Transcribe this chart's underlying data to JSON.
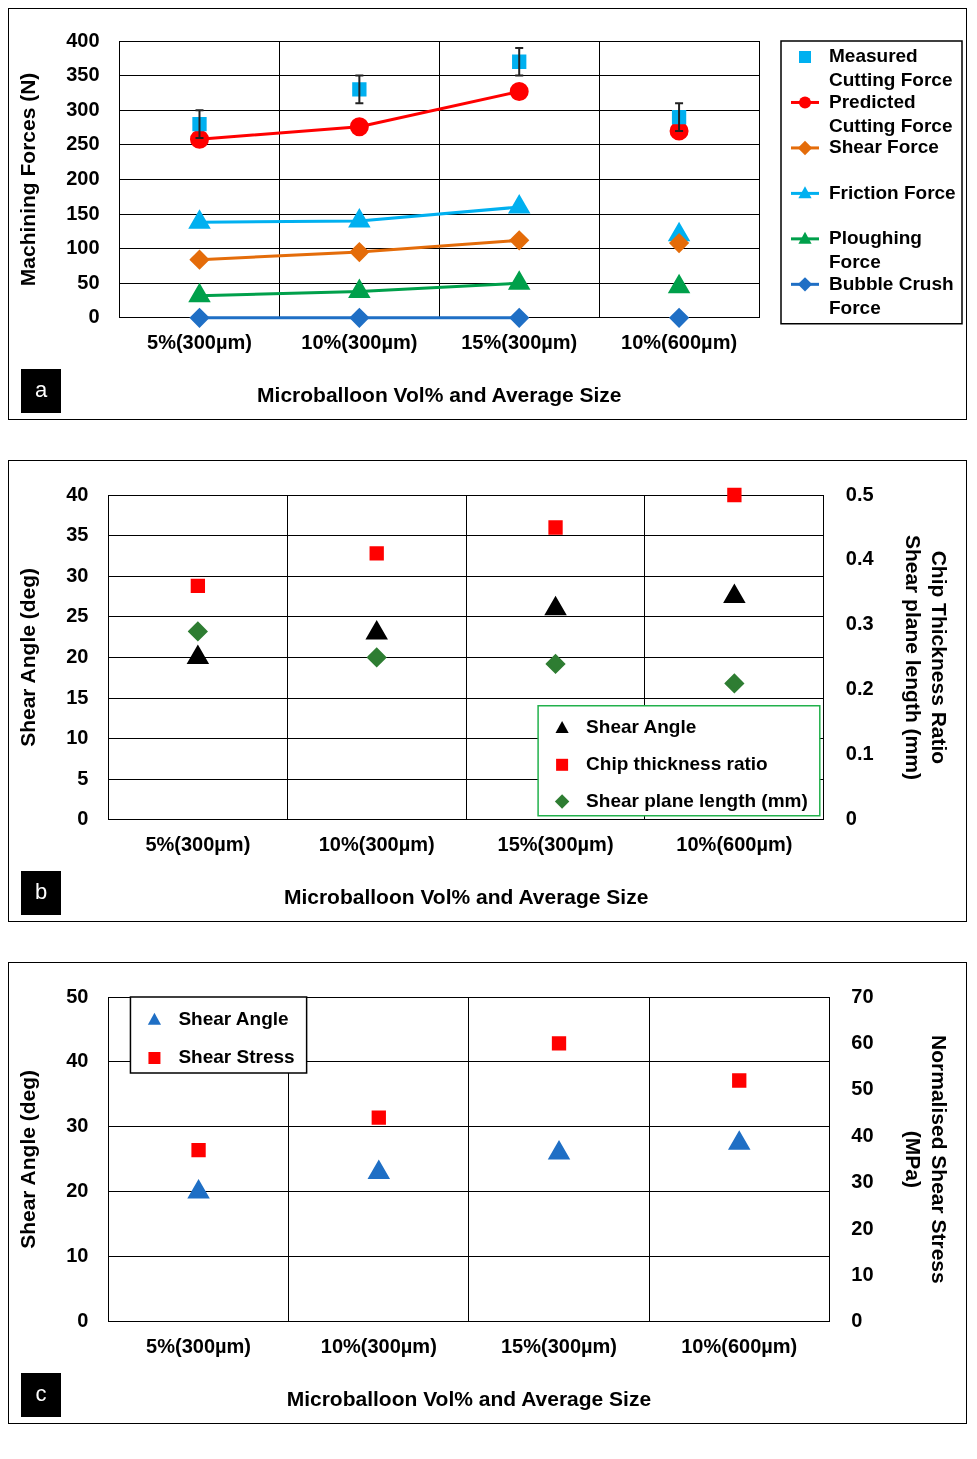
{
  "chart_data": [
    {
      "type": "line",
      "categories": [
        "5%(300µm)",
        "10%(300µm)",
        "15%(300µm)",
        "10%(600µm)"
      ],
      "xlabel": "Microballoon Vol% and Average Size",
      "ylabel": "Machining Forces (N)",
      "ylim": [
        0,
        400
      ],
      "yticks": [
        0,
        50,
        100,
        150,
        200,
        250,
        300,
        350,
        400
      ],
      "grid": true,
      "legend": "right",
      "annotations": [
        "a"
      ],
      "series": [
        {
          "name": "Measured Cutting Force",
          "type": "scatter",
          "marker": "square",
          "color": "#00b0f0",
          "values": [
            280,
            330,
            370,
            290
          ],
          "errors": [
            20,
            20,
            20,
            20
          ]
        },
        {
          "name": "Predicted Cutting Force",
          "type": "line",
          "marker": "circle",
          "color": "#ff0000",
          "values": [
            258,
            276,
            327,
            null
          ]
        },
        {
          "type": "scatter",
          "marker": "circle",
          "color": "#ff0000",
          "x": [
            "10%(600µm)"
          ],
          "values": [
            270
          ]
        },
        {
          "name": "Shear Force",
          "type": "line",
          "marker": "diamond",
          "color": "#e46c0a",
          "values": [
            84,
            95,
            112,
            null
          ]
        },
        {
          "type": "scatter",
          "marker": "diamond",
          "color": "#e46c0a",
          "x": [
            "10%(600µm)"
          ],
          "values": [
            108
          ]
        },
        {
          "name": "Friction Force",
          "type": "line",
          "marker": "triangle",
          "color": "#00b0f0",
          "values": [
            138,
            140,
            160,
            null
          ]
        },
        {
          "type": "scatter",
          "marker": "triangle",
          "color": "#00b0f0",
          "x": [
            "10%(600µm)"
          ],
          "values": [
            120
          ]
        },
        {
          "name": "Ploughing Force",
          "type": "line",
          "marker": "triangle",
          "color": "#00a04b",
          "values": [
            32,
            38,
            50,
            null
          ]
        },
        {
          "type": "scatter",
          "marker": "triangle",
          "color": "#00a04b",
          "x": [
            "10%(600µm)"
          ],
          "values": [
            45
          ]
        },
        {
          "name": "Bubble Crush Force",
          "type": "line",
          "marker": "diamond",
          "color": "#1f6fc5",
          "values": [
            0,
            0,
            0,
            null
          ]
        },
        {
          "type": "scatter",
          "marker": "diamond",
          "color": "#1f6fc5",
          "x": [
            "10%(600µm)"
          ],
          "values": [
            0
          ]
        }
      ]
    },
    {
      "type": "scatter",
      "categories": [
        "5%(300µm)",
        "10%(300µm)",
        "15%(300µm)",
        "10%(600µm)"
      ],
      "xlabel": "Microballoon Vol% and Average Size",
      "ylabel": "Shear Angle (deg)",
      "y2label": "Chip Thickness Ratio\nShear plane length (mm)",
      "ylim": [
        0,
        40
      ],
      "yticks": [
        0,
        5,
        10,
        15,
        20,
        25,
        30,
        35,
        40
      ],
      "y2lim": [
        0,
        0.5
      ],
      "y2ticks": [
        0,
        0.1,
        0.2,
        0.3,
        0.4,
        0.5
      ],
      "grid": true,
      "legend": "bottom right",
      "annotations": [
        "b"
      ],
      "series": [
        {
          "name": "Shear Angle",
          "marker": "triangle",
          "color": "#000000",
          "values": [
            20,
            23,
            26,
            27.5
          ]
        },
        {
          "name": "Chip thickness ratio",
          "marker": "square",
          "color": "#ff0000",
          "axis": "y2",
          "values": [
            0.36,
            0.41,
            0.45,
            0.5
          ]
        },
        {
          "name": "Shear plane length (mm)",
          "marker": "diamond",
          "color": "#2e7d32",
          "axis": "y2",
          "values": [
            0.29,
            0.25,
            0.24,
            0.21
          ]
        }
      ]
    },
    {
      "type": "scatter",
      "categories": [
        "5%(300µm)",
        "10%(300µm)",
        "15%(300µm)",
        "10%(600µm)"
      ],
      "xlabel": "Microballoon Vol% and Average Size",
      "ylabel": "Shear Angle (deg)",
      "y2label": "Normalised Shear Stress\n(MPa)",
      "ylim": [
        0,
        50
      ],
      "yticks": [
        0,
        10,
        20,
        30,
        40,
        50
      ],
      "y2lim": [
        0,
        70
      ],
      "y2ticks": [
        0,
        10,
        20,
        30,
        40,
        50,
        60,
        70
      ],
      "grid": true,
      "legend": "top left",
      "annotations": [
        "c"
      ],
      "series": [
        {
          "name": "Shear Angle",
          "marker": "triangle",
          "color": "#1f6fc5",
          "values": [
            20,
            23,
            26,
            27.5
          ]
        },
        {
          "name": "Shear Stress",
          "marker": "square",
          "color": "#ff0000",
          "axis": "y2",
          "values": [
            37,
            44,
            60,
            52
          ]
        }
      ]
    }
  ]
}
